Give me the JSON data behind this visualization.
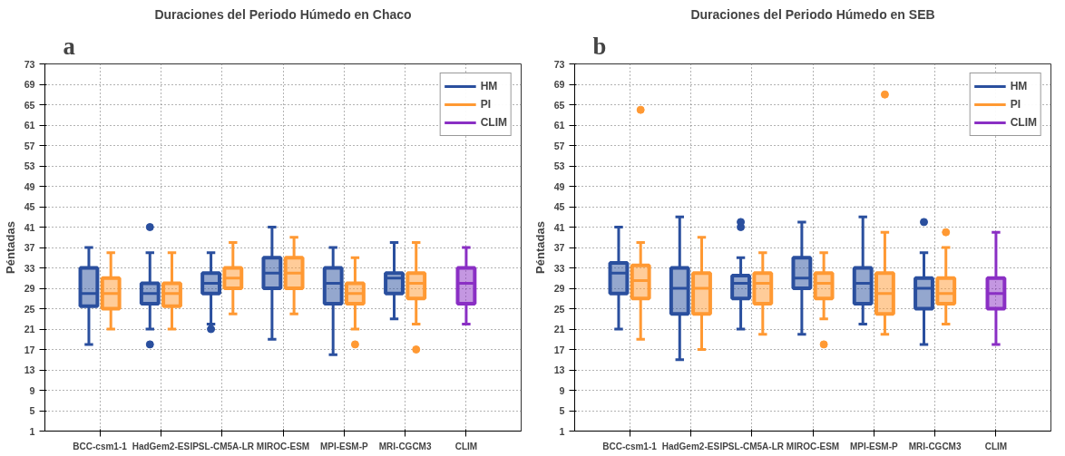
{
  "chart_data": [
    {
      "type": "box",
      "title": "Duraciones del Periodo Húmedo en Chaco",
      "ylabel": "Péntadas",
      "annotations": [
        "a"
      ],
      "categories": [
        "BCC-csm1-1",
        "HadGem2-ES",
        "IPSL-CM5A-LR",
        "MIROC-ESM",
        "MPI-ESM-P",
        "MRI-CGCM3",
        "CLIM"
      ],
      "ylim": [
        1,
        73
      ],
      "yticks": [
        1,
        5,
        9,
        13,
        17,
        21,
        25,
        29,
        33,
        37,
        41,
        45,
        49,
        53,
        57,
        61,
        65,
        69,
        73
      ],
      "grid": true,
      "legend": "top right",
      "series": [
        {
          "name": "HM",
          "color": "#2a4f9e",
          "boxes": [
            {
              "low": 18,
              "q1": 25.5,
              "median": 28,
              "q3": 33,
              "high": 37
            },
            {
              "low": 21,
              "q1": 26,
              "median": 28,
              "q3": 30,
              "high": 36,
              "outliers": [
                41,
                18
              ]
            },
            {
              "low": 22,
              "q1": 28,
              "median": 30,
              "q3": 32,
              "high": 36,
              "outliers": [
                21
              ]
            },
            {
              "low": 19,
              "q1": 29,
              "median": 32,
              "q3": 35,
              "high": 41
            },
            {
              "low": 16,
              "q1": 26,
              "median": 30,
              "q3": 33,
              "high": 37
            },
            {
              "low": 23,
              "q1": 28,
              "median": 31,
              "q3": 32,
              "high": 38
            },
            null
          ]
        },
        {
          "name": "PI",
          "color": "#ff9933",
          "boxes": [
            {
              "low": 21,
              "q1": 25,
              "median": 28,
              "q3": 31,
              "high": 36
            },
            {
              "low": 21,
              "q1": 25.5,
              "median": 28,
              "q3": 30,
              "high": 36
            },
            {
              "low": 24,
              "q1": 29,
              "median": 31,
              "q3": 33,
              "high": 38
            },
            {
              "low": 24,
              "q1": 29,
              "median": 32,
              "q3": 35,
              "high": 39
            },
            {
              "low": 21,
              "q1": 26,
              "median": 28,
              "q3": 30,
              "high": 35,
              "outliers": [
                18
              ]
            },
            {
              "low": 22,
              "q1": 27,
              "median": 30,
              "q3": 32,
              "high": 38,
              "outliers": [
                17
              ]
            },
            null
          ]
        },
        {
          "name": "CLIM",
          "color": "#8a2fc4",
          "boxes": [
            null,
            null,
            null,
            null,
            null,
            null,
            {
              "low": 22,
              "q1": 26,
              "median": 30,
              "q3": 33,
              "high": 37
            }
          ]
        }
      ]
    },
    {
      "type": "box",
      "title": "Duraciones del Periodo Húmedo en SEB",
      "ylabel": "Péntadas",
      "annotations": [
        "b"
      ],
      "categories": [
        "BCC-csm1-1",
        "HadGem2-ES",
        "IPSL-CM5A-LR",
        "MIROC-ESM",
        "MPI-ESM-P",
        "MRI-CGCM3",
        "CLIM"
      ],
      "ylim": [
        1,
        73
      ],
      "yticks": [
        1,
        5,
        9,
        13,
        17,
        21,
        25,
        29,
        33,
        37,
        41,
        45,
        49,
        53,
        57,
        61,
        65,
        69,
        73
      ],
      "grid": true,
      "legend": "top right",
      "series": [
        {
          "name": "HM",
          "color": "#2a4f9e",
          "boxes": [
            {
              "low": 21,
              "q1": 28,
              "median": 32,
              "q3": 34,
              "high": 41
            },
            {
              "low": 15,
              "q1": 24,
              "median": 29,
              "q3": 33,
              "high": 43
            },
            {
              "low": 21,
              "q1": 27,
              "median": 30,
              "q3": 31.5,
              "high": 35,
              "outliers": [
                41,
                42
              ]
            },
            {
              "low": 20,
              "q1": 29,
              "median": 31,
              "q3": 35,
              "high": 42
            },
            {
              "low": 22,
              "q1": 26,
              "median": 30,
              "q3": 33,
              "high": 43
            },
            {
              "low": 18,
              "q1": 25,
              "median": 29,
              "q3": 31,
              "high": 36,
              "outliers": [
                42
              ]
            },
            null
          ]
        },
        {
          "name": "PI",
          "color": "#ff9933",
          "boxes": [
            {
              "low": 19,
              "q1": 27,
              "median": 30.5,
              "q3": 33.5,
              "high": 38,
              "outliers": [
                64
              ]
            },
            {
              "low": 17,
              "q1": 24,
              "median": 29,
              "q3": 32,
              "high": 39
            },
            {
              "low": 20,
              "q1": 26,
              "median": 30,
              "q3": 32,
              "high": 36
            },
            {
              "low": 23,
              "q1": 27,
              "median": 30,
              "q3": 32,
              "high": 36,
              "outliers": [
                18
              ]
            },
            {
              "low": 20,
              "q1": 24,
              "median": 28,
              "q3": 32,
              "high": 40,
              "outliers": [
                67
              ]
            },
            {
              "low": 22,
              "q1": 26,
              "median": 28,
              "q3": 31,
              "high": 37,
              "outliers": [
                40
              ]
            },
            null
          ]
        },
        {
          "name": "CLIM",
          "color": "#8a2fc4",
          "boxes": [
            null,
            null,
            null,
            null,
            null,
            null,
            {
              "low": 18,
              "q1": 25,
              "median": 28,
              "q3": 31,
              "high": 40
            }
          ]
        }
      ]
    }
  ]
}
